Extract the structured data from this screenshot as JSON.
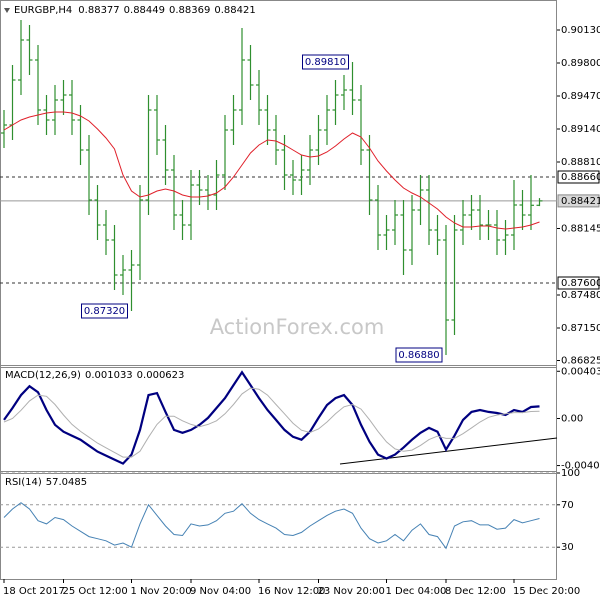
{
  "chart_data": [
    {
      "type": "ohlc",
      "symbol": "EURGBP,H4",
      "watermark": "ActionForex.com",
      "color": "#2f8f2f",
      "open": [
        0.891,
        0.8918,
        0.8963,
        0.9003,
        0.8983,
        0.8933,
        0.8923,
        0.8943,
        0.8948,
        0.8923,
        0.8893,
        0.8843,
        0.8818,
        0.8803,
        0.8768,
        0.8773,
        0.8778,
        0.8843,
        0.8933,
        0.8903,
        0.8873,
        0.8828,
        0.8818,
        0.8858,
        0.8853,
        0.8848,
        0.8868,
        0.8913,
        0.8933,
        0.8983,
        0.8958,
        0.8933,
        0.8913,
        0.8893,
        0.8868,
        0.8863,
        0.8873,
        0.8893,
        0.8913,
        0.8933,
        0.8948,
        0.8953,
        0.8943,
        0.8893,
        0.8843,
        0.8808,
        0.8813,
        0.8828,
        0.8793,
        0.8833,
        0.8853,
        0.8813,
        0.8803,
        0.8723,
        0.8813,
        0.8828,
        0.8833,
        0.8818,
        0.8818,
        0.8803,
        0.8808,
        0.8838,
        0.8828,
        0.88377
      ],
      "high": [
        0.8933,
        0.8978,
        0.9023,
        0.9018,
        0.8998,
        0.8948,
        0.8958,
        0.8963,
        0.8963,
        0.8938,
        0.8908,
        0.8858,
        0.8833,
        0.8818,
        0.8788,
        0.8793,
        0.8858,
        0.8948,
        0.8948,
        0.8918,
        0.8888,
        0.8843,
        0.8873,
        0.8873,
        0.8868,
        0.8883,
        0.8928,
        0.8948,
        0.9015,
        0.8998,
        0.8973,
        0.8948,
        0.8928,
        0.8908,
        0.8883,
        0.8888,
        0.8908,
        0.8928,
        0.8948,
        0.8963,
        0.8968,
        0.8981,
        0.8958,
        0.8908,
        0.8858,
        0.8828,
        0.8843,
        0.8843,
        0.8848,
        0.8868,
        0.8868,
        0.8828,
        0.8818,
        0.8828,
        0.8843,
        0.8848,
        0.8848,
        0.8833,
        0.8833,
        0.8823,
        0.8863,
        0.8853,
        0.8868,
        0.88449
      ],
      "low": [
        0.8895,
        0.8903,
        0.8948,
        0.8968,
        0.8918,
        0.8908,
        0.8908,
        0.8928,
        0.8908,
        0.8878,
        0.8828,
        0.8803,
        0.8788,
        0.8753,
        0.8748,
        0.8732,
        0.8763,
        0.8828,
        0.8888,
        0.8858,
        0.8813,
        0.8803,
        0.8803,
        0.8838,
        0.8833,
        0.8833,
        0.8853,
        0.8898,
        0.8918,
        0.8943,
        0.8918,
        0.8898,
        0.8878,
        0.8853,
        0.8848,
        0.8848,
        0.8858,
        0.8878,
        0.8898,
        0.8918,
        0.8933,
        0.8928,
        0.8878,
        0.8828,
        0.8793,
        0.8793,
        0.8798,
        0.8768,
        0.8778,
        0.8818,
        0.8798,
        0.8788,
        0.8688,
        0.8708,
        0.8798,
        0.8813,
        0.8803,
        0.8803,
        0.8788,
        0.8788,
        0.8793,
        0.8813,
        0.8813,
        0.88369
      ],
      "close": [
        0.8918,
        0.8963,
        0.9003,
        0.8983,
        0.8933,
        0.8923,
        0.8943,
        0.8948,
        0.8923,
        0.8893,
        0.8843,
        0.8818,
        0.8803,
        0.8768,
        0.8773,
        0.8778,
        0.8843,
        0.8933,
        0.8903,
        0.8873,
        0.8828,
        0.8818,
        0.8858,
        0.8853,
        0.8848,
        0.8868,
        0.8913,
        0.8933,
        0.8983,
        0.8958,
        0.8933,
        0.8913,
        0.8893,
        0.8868,
        0.8863,
        0.8873,
        0.8893,
        0.8913,
        0.8933,
        0.8948,
        0.8953,
        0.8943,
        0.8893,
        0.8843,
        0.8808,
        0.8813,
        0.8828,
        0.8793,
        0.8833,
        0.8853,
        0.8813,
        0.8803,
        0.8723,
        0.8813,
        0.8828,
        0.8833,
        0.8818,
        0.8818,
        0.8803,
        0.8808,
        0.8838,
        0.8828,
        0.88377,
        0.88421
      ],
      "ma": {
        "color": "#e0202a",
        "values": [
          0.8913,
          0.8918,
          0.8923,
          0.8926,
          0.8928,
          0.893,
          0.8931,
          0.8931,
          0.893,
          0.8927,
          0.8922,
          0.8914,
          0.8905,
          0.8894,
          0.8868,
          0.8852,
          0.8846,
          0.8848,
          0.8852,
          0.8854,
          0.8852,
          0.8848,
          0.8846,
          0.8846,
          0.8847,
          0.885,
          0.8856,
          0.8866,
          0.8878,
          0.889,
          0.8898,
          0.8903,
          0.8902,
          0.8898,
          0.8893,
          0.8888,
          0.8886,
          0.8887,
          0.8891,
          0.8897,
          0.8904,
          0.891,
          0.8906,
          0.8895,
          0.8882,
          0.8872,
          0.8863,
          0.8855,
          0.885,
          0.8846,
          0.884,
          0.8834,
          0.8826,
          0.882,
          0.8816,
          0.8816,
          0.8817,
          0.8817,
          0.8815,
          0.8814,
          0.8815,
          0.8816,
          0.8818,
          0.8821
        ]
      },
      "ylim": [
        0.8678,
        0.9043
      ],
      "yticks": [
        {
          "value": 0.9013,
          "label": "0.90130"
        },
        {
          "value": 0.898,
          "label": "0.89800"
        },
        {
          "value": 0.8947,
          "label": "0.89470"
        },
        {
          "value": 0.8914,
          "label": "0.89140"
        },
        {
          "value": 0.8881,
          "label": "0.88810"
        },
        0.88145,
        {
          "value": 0.8748,
          "label": "0.87480"
        },
        {
          "value": 0.8715,
          "label": "0.87150"
        },
        0.86825
      ],
      "xticks": [
        {
          "value": 0,
          "label": "18 Oct 2017"
        },
        {
          "value": 7,
          "label": "25 Oct 12:00"
        },
        {
          "value": 15,
          "label": "1 Nov 20:00"
        },
        {
          "value": 22,
          "label": "9 Nov 04:00"
        },
        {
          "value": 30,
          "label": "16 Nov 12:00"
        },
        {
          "value": 37,
          "label": "23 Nov 20:00"
        },
        {
          "value": 45,
          "label": "1 Dec 04:00"
        },
        {
          "value": 52,
          "label": "8 Dec 12:00"
        },
        {
          "value": 60,
          "label": "15 Dec 20:00"
        }
      ],
      "hlines": [
        {
          "value": 0.8866,
          "label": "0.88660"
        },
        {
          "value": 0.876,
          "label": "0.87600"
        }
      ],
      "annotations": [
        {
          "value": 0.8981,
          "label": "0.89810"
        },
        {
          "value": 0.8732,
          "label": "0.87320"
        },
        {
          "value": 0.8688,
          "label": "0.86880"
        }
      ],
      "grid": false
    },
    {
      "type": "line",
      "title": "MACD(12,26,9)",
      "series": [
        {
          "color": "#000080",
          "values": [
            -0.00012,
            0.0009,
            0.002,
            0.00276,
            0.00225,
            0.00073,
            -0.00054,
            -0.00113,
            -0.00147,
            -0.00181,
            -0.00232,
            -0.00283,
            -0.00317,
            -0.00351,
            -0.00385,
            -0.00308,
            -0.00097,
            0.002,
            0.00217,
            0.00056,
            -0.00097,
            -0.00122,
            -0.00097,
            -0.00054,
            5e-05,
            0.0009,
            0.00174,
            0.00285,
            0.00395,
            0.00285,
            0.00174,
            0.00073,
            -0.00012,
            -0.00097,
            -0.00156,
            -0.00181,
            -0.00113,
            5e-05,
            0.00115,
            0.00174,
            0.002,
            0.00115,
            -0.00054,
            -0.00198,
            -0.00308,
            -0.00342,
            -0.00308,
            -0.00249,
            -0.00181,
            -0.00122,
            -0.0008,
            -0.00113,
            -0.00266,
            -0.00147,
            -0.00012,
            0.00056,
            0.00073,
            0.00056,
            0.00047,
            0.0003,
            0.00073,
            0.00056,
            0.00098,
            0.001033
          ]
        },
        {
          "color": "#b0b0b0",
          "values": [
            -0.0003,
            0,
            0.0007,
            0.0015,
            0.002,
            0.0019,
            0.0012,
            0.0003,
            -0.0005,
            -0.0011,
            -0.0016,
            -0.0021,
            -0.0025,
            -0.0029,
            -0.0033,
            -0.0033,
            -0.0028,
            -0.0016,
            -0.0005,
            0.0002,
            0.0002,
            -0.0002,
            -0.0005,
            -0.0007,
            -0.0005,
            -0.0002,
            0.0004,
            0.0012,
            0.0021,
            0.0026,
            0.0025,
            0.002,
            0.0012,
            0.0004,
            -0.0004,
            -0.001,
            -0.0012,
            -0.0009,
            -0.0003,
            0.0004,
            0.001,
            0.0012,
            0.0008,
            -0.0001,
            -0.0011,
            -0.002,
            -0.0026,
            -0.0028,
            -0.0027,
            -0.0023,
            -0.0018,
            -0.0015,
            -0.0017,
            -0.0017,
            -0.0013,
            -0.0008,
            -0.0003,
            0.0001,
            0.0003,
            0.0004,
            0.0005,
            0.0005,
            0.0006,
            0.000623
          ]
        }
      ],
      "ylim": [
        -0.0044,
        0.0044
      ],
      "yticks": [
        0.004035,
        {
          "value": 0,
          "label": "0.00"
        },
        -0.004021
      ],
      "grid": false
    },
    {
      "type": "line",
      "title": "RSI(14)",
      "series": [
        {
          "color": "#4682b4",
          "values": [
            58,
            66,
            72,
            66,
            55,
            52,
            58,
            56,
            50,
            45,
            40,
            38,
            36,
            32,
            34,
            30,
            52,
            70,
            60,
            50,
            42,
            41,
            52,
            50,
            51,
            55,
            62,
            64,
            71,
            62,
            56,
            52,
            48,
            42,
            41,
            44,
            50,
            55,
            60,
            64,
            66,
            62,
            48,
            38,
            34,
            36,
            42,
            36,
            46,
            52,
            42,
            40,
            29,
            50,
            54,
            55,
            51,
            51,
            47,
            48,
            56,
            53,
            55,
            57.0485
          ]
        }
      ],
      "ylim": [
        0,
        100
      ],
      "yticks": [
        100,
        70,
        30
      ],
      "grid": true
    }
  ]
}
